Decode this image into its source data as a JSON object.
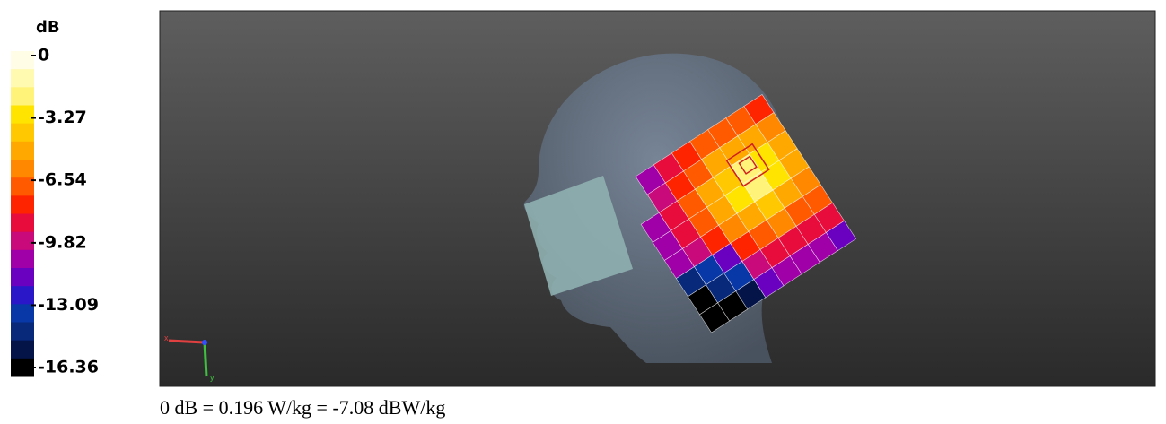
{
  "colorbar": {
    "unit": "dB",
    "ticks": [
      0,
      -3.27,
      -6.54,
      -9.82,
      -13.09,
      -16.36
    ]
  },
  "axes": {
    "x": "x",
    "y": "y"
  },
  "caption": "0 dB = 0.196 W/kg = -7.08 dBW/kg"
}
